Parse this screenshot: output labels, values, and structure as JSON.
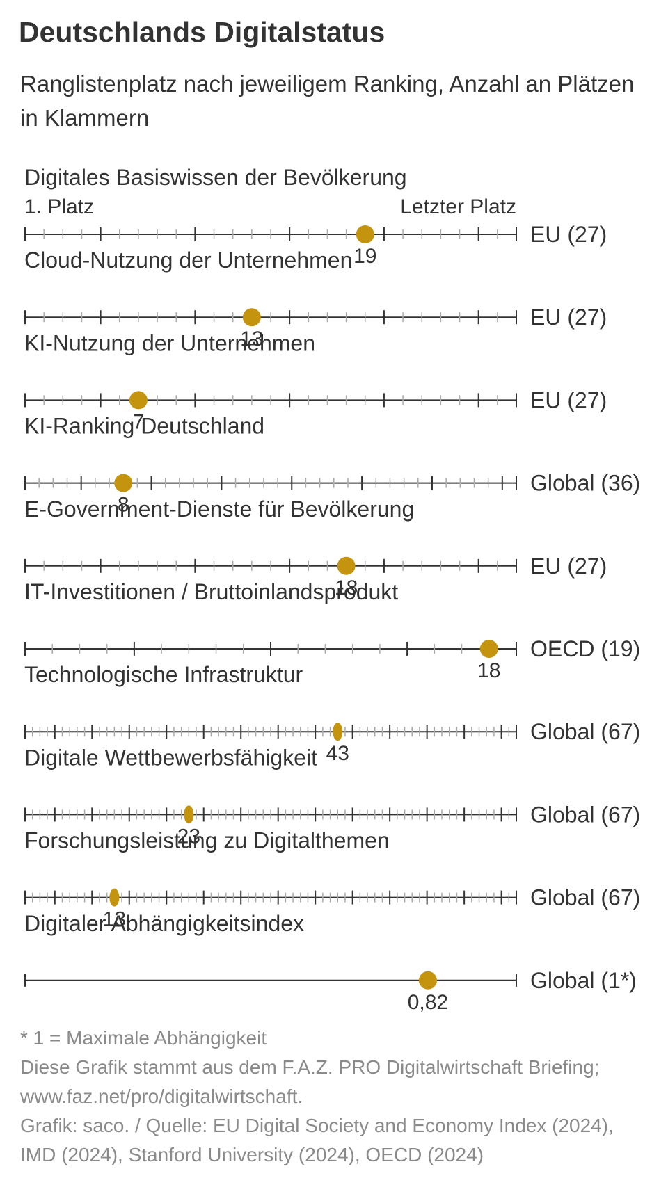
{
  "title": "Deutschlands Digitalstatus",
  "subtitle": "Ranglistenplatz nach jeweiligem Ranking, Anzahl an Plätzen in Klammern",
  "scale_labels": {
    "start": "1. Platz",
    "end": "Letzter Platz"
  },
  "colors": {
    "marker": "#c4940f",
    "axis": "#333333",
    "minor_tick": "#aaaaaa",
    "text": "#333333",
    "footnote": "#8a8a8a"
  },
  "chart_data": {
    "type": "scatter",
    "description_type": "dot-on-scale rankings",
    "series": [
      {
        "name": "Digitales Basiswissen der Bevölkerung",
        "value": 19,
        "value_label": "19",
        "max": 27,
        "scope": "EU (27)",
        "major_every": 5
      },
      {
        "name": "Cloud-Nutzung der Unternehmen",
        "value": 13,
        "value_label": "13",
        "max": 27,
        "scope": "EU (27)",
        "major_every": 5
      },
      {
        "name": "KI-Nutzung der Unternehmen",
        "value": 7,
        "value_label": "7",
        "max": 27,
        "scope": "EU (27)",
        "major_every": 5
      },
      {
        "name": "KI-Ranking Deutschland",
        "value": 8,
        "value_label": "8",
        "max": 36,
        "scope": "Global (36)",
        "major_every": 5
      },
      {
        "name": "E-Government-Dienste für Bevölkerung",
        "value": 18,
        "value_label": "18",
        "max": 27,
        "scope": "EU (27)",
        "major_every": 5
      },
      {
        "name": "IT-Investitionen / Bruttoinlandsprodukt",
        "value": 18,
        "value_label": "18",
        "max": 19,
        "scope": "OECD (19)",
        "major_every": 5
      },
      {
        "name": "Technologische Infrastruktur",
        "value": 43,
        "value_label": "43",
        "max": 67,
        "scope": "Global (67)",
        "major_every": 5
      },
      {
        "name": "Digitale Wettbewerbsfähigkeit",
        "value": 23,
        "value_label": "23",
        "max": 67,
        "scope": "Global (67)",
        "major_every": 5
      },
      {
        "name": "Forschungsleistung zu Digitalthemen",
        "value": 13,
        "value_label": "13",
        "max": 67,
        "scope": "Global (67)",
        "major_every": 5
      },
      {
        "name": "Digitaler Abhängigkeitsindex",
        "value": 0.82,
        "value_label": "0,82",
        "min": 0,
        "max": 1,
        "scope": "Global (1*)",
        "continuous": true
      }
    ]
  },
  "footnotes": [
    "* 1 = Maximale Abhängigkeit",
    "Diese Grafik stammt aus dem F.A.Z. PRO Digitalwirtschaft Briefing; www.faz.net/pro/digitalwirtschaft.",
    "Grafik: saco. / Quelle: EU Digital Society and Economy Index (2024), IMD (2024), Stanford University (2024), OECD (2024)"
  ]
}
